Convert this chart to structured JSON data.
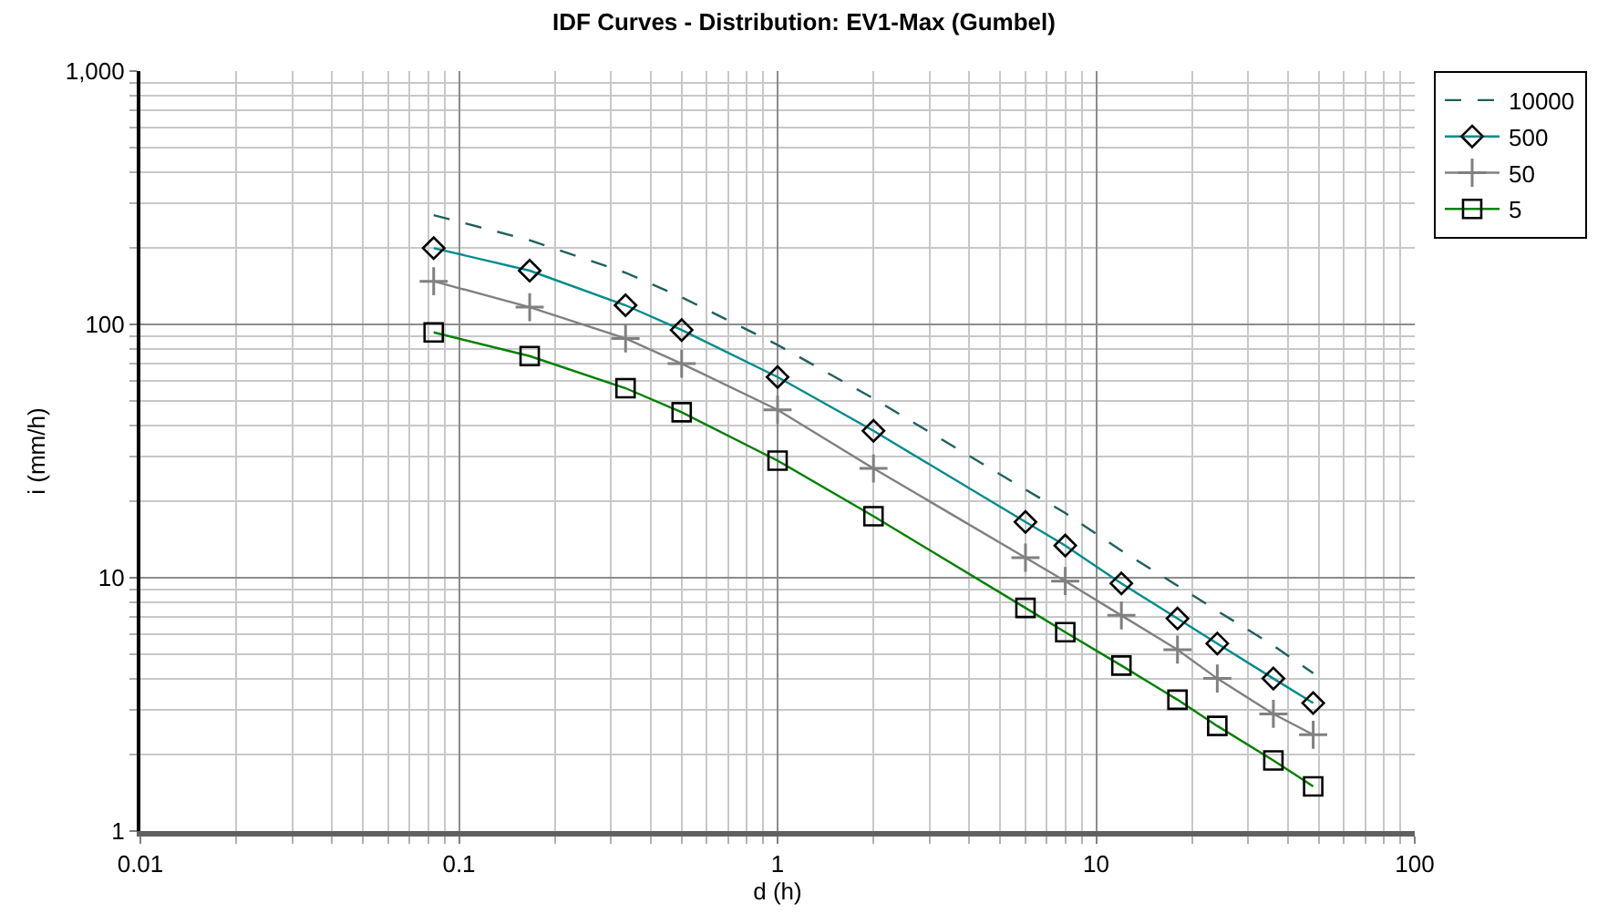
{
  "chart_data": {
    "type": "line",
    "title": "IDF Curves - Distribution: EV1-Max (Gumbel)",
    "xlabel": "d (h)",
    "ylabel": "i (mm/h)",
    "x": [
      0.0833,
      0.1667,
      0.3333,
      0.5,
      1,
      2,
      6,
      8,
      12,
      18,
      24,
      36,
      48
    ],
    "series": [
      {
        "name": "10000",
        "color": "#1f5f5f",
        "line_style": "dashed",
        "marker": "none",
        "values": [
          270,
          215,
          160,
          128,
          83,
          51,
          22.3,
          18,
          12.8,
          9.3,
          7.4,
          5.4,
          4.2
        ]
      },
      {
        "name": "500",
        "color": "#008b8b",
        "line_style": "solid",
        "marker": "diamond",
        "values": [
          200,
          163,
          119,
          95,
          62,
          38,
          16.6,
          13.4,
          9.5,
          6.9,
          5.5,
          4.0,
          3.2
        ]
      },
      {
        "name": "50",
        "color": "#808080",
        "line_style": "solid",
        "marker": "cross",
        "values": [
          148,
          117,
          88,
          70,
          46,
          27,
          12,
          9.7,
          7.1,
          5.2,
          4.0,
          2.9,
          2.4
        ]
      },
      {
        "name": "5",
        "color": "#008000",
        "line_style": "solid",
        "marker": "square",
        "values": [
          93,
          75,
          56,
          45,
          29,
          17.5,
          7.6,
          6.1,
          4.5,
          3.3,
          2.6,
          1.9,
          1.5
        ]
      }
    ],
    "log": "xy",
    "grid": true,
    "legend": "top right",
    "xlim": [
      0.01,
      100
    ],
    "xticks": [
      0.01,
      {
        "value": 0.02,
        "label": null
      },
      {
        "value": 0.03,
        "label": null
      },
      {
        "value": 0.04,
        "label": null
      },
      {
        "value": 0.05,
        "label": null
      },
      {
        "value": 0.06,
        "label": null
      },
      {
        "value": 0.07,
        "label": null
      },
      {
        "value": 0.08,
        "label": null
      },
      {
        "value": 0.09,
        "label": null
      },
      0.1,
      {
        "value": 0.2,
        "label": null
      },
      {
        "value": 0.3,
        "label": null
      },
      {
        "value": 0.4,
        "label": null
      },
      {
        "value": 0.5,
        "label": null
      },
      {
        "value": 0.6,
        "label": null
      },
      {
        "value": 0.7,
        "label": null
      },
      {
        "value": 0.8,
        "label": null
      },
      {
        "value": 0.9,
        "label": null
      },
      1,
      {
        "value": 2,
        "label": null
      },
      {
        "value": 3,
        "label": null
      },
      {
        "value": 4,
        "label": null
      },
      {
        "value": 5,
        "label": null
      },
      {
        "value": 6,
        "label": null
      },
      {
        "value": 7,
        "label": null
      },
      {
        "value": 8,
        "label": null
      },
      {
        "value": 9,
        "label": null
      },
      10,
      {
        "value": 20,
        "label": null
      },
      {
        "value": 30,
        "label": null
      },
      {
        "value": 40,
        "label": null
      },
      {
        "value": 50,
        "label": null
      },
      {
        "value": 60,
        "label": null
      },
      {
        "value": 70,
        "label": null
      },
      {
        "value": 80,
        "label": null
      },
      {
        "value": 90,
        "label": null
      },
      100
    ],
    "ylim": [
      1,
      1000
    ],
    "yticks": [
      1,
      {
        "value": 2,
        "label": null
      },
      {
        "value": 3,
        "label": null
      },
      {
        "value": 4,
        "label": null
      },
      {
        "value": 5,
        "label": null
      },
      {
        "value": 6,
        "label": null
      },
      {
        "value": 7,
        "label": null
      },
      {
        "value": 8,
        "label": null
      },
      {
        "value": 9,
        "label": null
      },
      10,
      {
        "value": 20,
        "label": null
      },
      {
        "value": 30,
        "label": null
      },
      {
        "value": 40,
        "label": null
      },
      {
        "value": 50,
        "label": null
      },
      {
        "value": 60,
        "label": null
      },
      {
        "value": 70,
        "label": null
      },
      {
        "value": 80,
        "label": null
      },
      {
        "value": 90,
        "label": null
      },
      100,
      {
        "value": 200,
        "label": null
      },
      {
        "value": 300,
        "label": null
      },
      {
        "value": 400,
        "label": null
      },
      {
        "value": 500,
        "label": null
      },
      {
        "value": 600,
        "label": null
      },
      {
        "value": 700,
        "label": null
      },
      {
        "value": 800,
        "label": null
      },
      {
        "value": 900,
        "label": null
      },
      {
        "value": 1000,
        "label": "1,000"
      }
    ]
  }
}
